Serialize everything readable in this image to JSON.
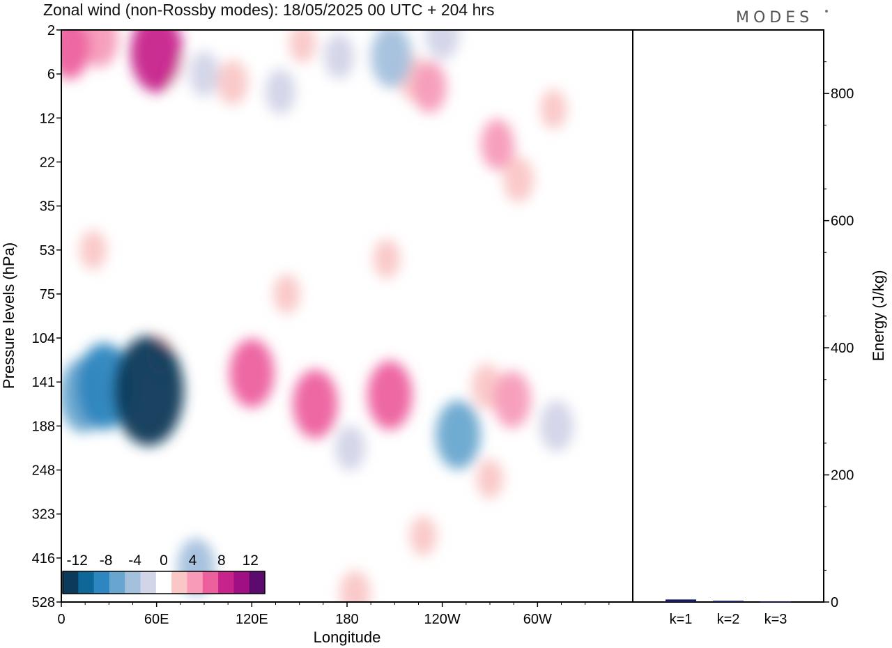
{
  "title": "Zonal wind (non-Rossby modes):  18/05/2025  00 UTC  + 204 hrs",
  "brand": "MODES",
  "chart_data": [
    {
      "type": "heatmap",
      "title": "Zonal wind (non-Rossby modes):  18/05/2025  00 UTC  + 204 hrs",
      "xlabel": "Longitude",
      "ylabel": "Pressure levels (hPa)",
      "x_ticks": [
        "0",
        "60E",
        "120E",
        "180",
        "120W",
        "60W"
      ],
      "y_ticks": [
        "2",
        "6",
        "12",
        "22",
        "35",
        "53",
        "75",
        "104",
        "141",
        "188",
        "248",
        "323",
        "416",
        "528"
      ],
      "colorbar": {
        "tick_labels": [
          "-12",
          "-8",
          "-4",
          "0",
          "4",
          "8",
          "12"
        ],
        "levels": [
          -14,
          -12,
          -10,
          -8,
          -6,
          -4,
          -2,
          2,
          4,
          6,
          8,
          10,
          12,
          14
        ],
        "colors": [
          "#0b3a5a",
          "#0d6798",
          "#2d86bf",
          "#69a6cf",
          "#a3c0dd",
          "#d2d4e8",
          "#ffffff",
          "#fac6c6",
          "#f79bb9",
          "#ed609e",
          "#c7238b",
          "#a10f84",
          "#5c0a6e"
        ]
      },
      "regions": [
        {
          "lon": 55,
          "lev": 8.2,
          "value": -14
        },
        {
          "lon": 27,
          "lev": 8.1,
          "value": -10
        },
        {
          "lon": 14,
          "lev": 8.3,
          "value": -8
        },
        {
          "lon": 62,
          "lev": 7.4,
          "value": 2
        },
        {
          "lon": 120,
          "lev": 7.8,
          "value": 7
        },
        {
          "lon": 160,
          "lev": 8.5,
          "value": 7
        },
        {
          "lon": 207,
          "lev": 8.3,
          "value": 7
        },
        {
          "lon": 284,
          "lev": 8.4,
          "value": 5
        },
        {
          "lon": 250,
          "lev": 9.2,
          "value": -7
        },
        {
          "lon": 182,
          "lev": 9.5,
          "value": -3
        },
        {
          "lon": 268,
          "lev": 8.1,
          "value": 3
        },
        {
          "lon": 312,
          "lev": 9.0,
          "value": -4
        },
        {
          "lon": 85,
          "lev": 12.2,
          "value": -5
        },
        {
          "lon": 185,
          "lev": 12.8,
          "value": 3
        },
        {
          "lon": 5,
          "lev": 0.4,
          "value": 6
        },
        {
          "lon": 24,
          "lev": 0.2,
          "value": 5
        },
        {
          "lon": 60,
          "lev": 0.5,
          "value": 9
        },
        {
          "lon": 90,
          "lev": 1.0,
          "value": -3
        },
        {
          "lon": 108,
          "lev": 1.2,
          "value": 3
        },
        {
          "lon": 138,
          "lev": 1.4,
          "value": -3
        },
        {
          "lon": 152,
          "lev": 0.3,
          "value": 2
        },
        {
          "lon": 175,
          "lev": 0.6,
          "value": -3
        },
        {
          "lon": 208,
          "lev": 0.6,
          "value": -6
        },
        {
          "lon": 240,
          "lev": 0.1,
          "value": -4
        },
        {
          "lon": 232,
          "lev": 1.3,
          "value": 4
        },
        {
          "lon": 222,
          "lev": 1.1,
          "value": 3
        },
        {
          "lon": 275,
          "lev": 2.6,
          "value": 4
        },
        {
          "lon": 288,
          "lev": 3.4,
          "value": 3
        },
        {
          "lon": 290,
          "lev": 2.0,
          "value": -2
        },
        {
          "lon": 310,
          "lev": 1.8,
          "value": 2
        },
        {
          "lon": 192,
          "lev": 3.0,
          "value": -2
        },
        {
          "lon": 222,
          "lev": 3.2,
          "value": -2
        },
        {
          "lon": 310,
          "lev": 4.4,
          "value": -2
        },
        {
          "lon": 115,
          "lev": 2.0,
          "value": -2
        },
        {
          "lon": 75,
          "lev": 1.0,
          "value": -2
        },
        {
          "lon": 205,
          "lev": 5.2,
          "value": 2
        },
        {
          "lon": 142,
          "lev": 6.0,
          "value": 2
        },
        {
          "lon": 20,
          "lev": 5.0,
          "value": 2
        },
        {
          "lon": 246,
          "lev": 6.5,
          "value": -2
        },
        {
          "lon": 270,
          "lev": 10.2,
          "value": 2
        },
        {
          "lon": 228,
          "lev": 11.5,
          "value": 2
        },
        {
          "lon": 316,
          "lev": 11.0,
          "value": -2
        },
        {
          "lon": 102,
          "lev": 11.2,
          "value": -2
        },
        {
          "lon": 20,
          "lev": 10.5,
          "value": -2
        },
        {
          "lon": 5,
          "lev": 6.0,
          "value": -2
        }
      ]
    },
    {
      "type": "bar",
      "categories": [
        "k=1",
        "k=2",
        "k=3"
      ],
      "values": [
        4,
        2,
        1
      ],
      "ylabel": "Energy (J/kg)",
      "ylim": [
        0,
        900
      ],
      "y_ticks": [
        0,
        200,
        400,
        600,
        800
      ],
      "bar_color": "#1a1a5e"
    }
  ]
}
